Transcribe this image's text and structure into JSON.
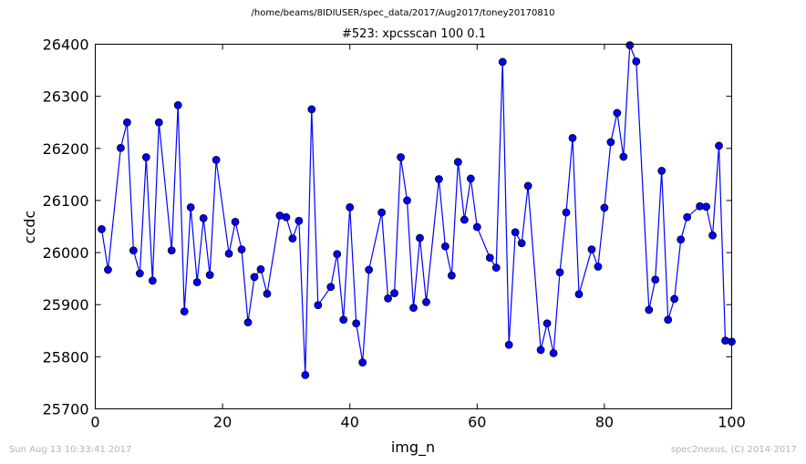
{
  "header": {
    "path": "/home/beams/8IDIUSER/spec_data/2017/Aug2017/toney20170810"
  },
  "footer": {
    "timestamp": "Sun Aug 13 10:33:41 2017",
    "credit": "spec2nexus, (C) 2014-2017"
  },
  "chart_data": {
    "type": "line",
    "title": "#523: xpcsscan 100 0.1",
    "xlabel": "img_n",
    "ylabel": "ccdc",
    "xlim": [
      0,
      100
    ],
    "ylim": [
      25700,
      26400
    ],
    "xticks": [
      0,
      20,
      40,
      60,
      80,
      100
    ],
    "yticks": [
      25700,
      25800,
      25900,
      26000,
      26100,
      26200,
      26300,
      26400
    ],
    "grid": false,
    "series": [
      {
        "color": "#0000ff",
        "marker": "circle",
        "x": [
          1,
          2,
          4,
          5,
          6,
          7,
          8,
          9,
          10,
          12,
          13,
          14,
          15,
          16,
          17,
          18,
          19,
          21,
          22,
          23,
          24,
          25,
          26,
          27,
          29,
          30,
          31,
          32,
          33,
          34,
          35,
          37,
          38,
          39,
          40,
          41,
          42,
          43,
          45,
          46,
          47,
          48,
          49,
          50,
          51,
          52,
          54,
          55,
          56,
          57,
          58,
          59,
          60,
          62,
          63,
          64,
          65,
          66,
          67,
          68,
          70,
          71,
          72,
          73,
          74,
          75,
          76,
          78,
          79,
          80,
          81,
          82,
          83,
          84,
          85,
          87,
          88,
          89,
          90,
          91,
          92,
          93,
          95,
          96,
          97,
          98,
          99,
          100
        ],
        "y": [
          26045,
          25967,
          26201,
          26250,
          26004,
          25960,
          26183,
          25946,
          26250,
          26004,
          26283,
          25887,
          26087,
          25943,
          26066,
          25957,
          26178,
          25998,
          26059,
          26006,
          25866,
          25953,
          25968,
          25921,
          26071,
          26068,
          26027,
          26061,
          25765,
          26275,
          25899,
          25934,
          25997,
          25871,
          26087,
          25864,
          25789,
          25967,
          26077,
          25912,
          25922,
          26183,
          26100,
          25894,
          26028,
          25905,
          26141,
          26012,
          25956,
          26174,
          26063,
          26142,
          26049,
          25990,
          25971,
          26366,
          25823,
          26039,
          26018,
          26128,
          25813,
          25864,
          25807,
          25962,
          26077,
          26220,
          25920,
          26006,
          25973,
          26086,
          26212,
          26268,
          26184,
          26398,
          26367,
          25890,
          25948,
          26157,
          25871,
          25911,
          26025,
          26068,
          26089,
          26088,
          26033,
          26205,
          25831,
          25829
        ]
      }
    ]
  }
}
